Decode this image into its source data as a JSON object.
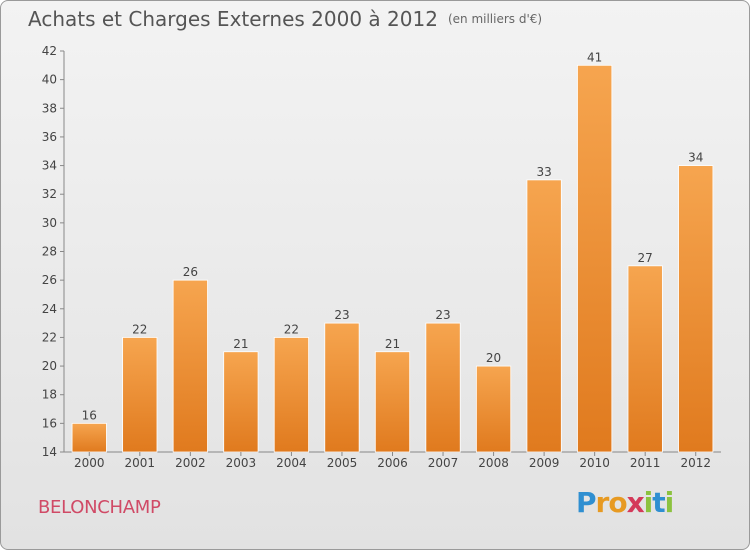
{
  "header": {
    "title": "Achats et Charges Externes 2000 à 2012",
    "unit": "(en milliers d'€)"
  },
  "footer": {
    "commune": "BELONCHAMP",
    "logo_text": "Proxiti"
  },
  "colors": {
    "bar_top": "#f6a54f",
    "bar_bottom": "#e07a1e",
    "axis": "#888888",
    "grid": "#d8d8d8",
    "text": "#444444"
  },
  "chart_data": {
    "type": "bar",
    "title": "Achats et Charges Externes 2000 à 2012",
    "subtitle": "(en milliers d'€)",
    "xlabel": "",
    "ylabel": "",
    "categories": [
      "2000",
      "2001",
      "2002",
      "2003",
      "2004",
      "2005",
      "2006",
      "2007",
      "2008",
      "2009",
      "2010",
      "2011",
      "2012"
    ],
    "values": [
      16,
      22,
      26,
      21,
      22,
      23,
      21,
      23,
      20,
      33,
      41,
      27,
      34
    ],
    "ylim": [
      14,
      42
    ],
    "yticks": [
      14,
      16,
      18,
      20,
      22,
      24,
      26,
      28,
      30,
      32,
      34,
      36,
      38,
      40,
      42
    ],
    "grid": false,
    "data_labels": true
  }
}
